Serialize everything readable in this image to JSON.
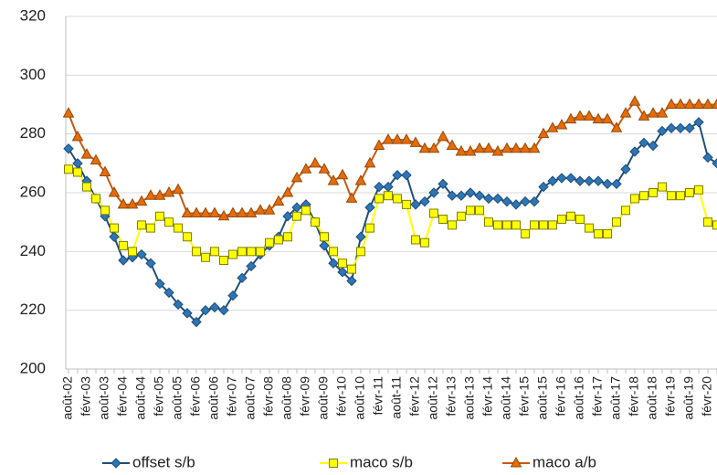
{
  "chart_data": {
    "type": "line",
    "categories": [
      "août-02",
      null,
      "févr-03",
      null,
      "août-03",
      null,
      "févr-04",
      null,
      "août-04",
      null,
      "févr-05",
      null,
      "août-05",
      null,
      "févr-06",
      null,
      "août-06",
      null,
      "févr-07",
      null,
      "août-07",
      null,
      "févr-08",
      null,
      "août-08",
      null,
      "févr-09",
      null,
      "août-09",
      null,
      "févr-10",
      null,
      "août-10",
      null,
      "févr-11",
      null,
      "août-11",
      null,
      "févr-12",
      null,
      "août-12",
      null,
      "févr-13",
      null,
      "août-13",
      null,
      "févr-14",
      null,
      "août-14",
      null,
      "févr-15",
      null,
      "août-15",
      null,
      "févr-16",
      null,
      "août-16",
      null,
      "févr-17",
      null,
      "août-17",
      null,
      "févr-18",
      null,
      "août-18",
      null,
      "févr-19",
      null,
      "août-19",
      null,
      "févr-20",
      null
    ],
    "series": [
      {
        "name": "offset s/b",
        "color": "#2e75b6",
        "marker": "diamond",
        "values": [
          275,
          270,
          264,
          258,
          252,
          245,
          237,
          238,
          239,
          236,
          229,
          226,
          222,
          219,
          216,
          220,
          221,
          220,
          225,
          231,
          235,
          239,
          242,
          245,
          252,
          255,
          256,
          250,
          242,
          236,
          233,
          230,
          245,
          255,
          262,
          262,
          266,
          266,
          256,
          257,
          260,
          263,
          259,
          259,
          260,
          259,
          258,
          258,
          257,
          256,
          257,
          257,
          262,
          264,
          265,
          265,
          264,
          264,
          264,
          263,
          263,
          268,
          274,
          277,
          276,
          281,
          282,
          282,
          282,
          284,
          272,
          270
        ]
      },
      {
        "name": "maco s/b",
        "color": "#ffff00",
        "marker": "square",
        "values": [
          268,
          267,
          262,
          258,
          254,
          248,
          242,
          240,
          249,
          248,
          252,
          250,
          248,
          245,
          240,
          238,
          240,
          237,
          239,
          240,
          240,
          240,
          243,
          244,
          245,
          252,
          254,
          250,
          245,
          240,
          236,
          234,
          240,
          248,
          258,
          259,
          258,
          256,
          244,
          243,
          253,
          251,
          249,
          252,
          254,
          254,
          250,
          249,
          249,
          249,
          246,
          249,
          249,
          249,
          251,
          252,
          251,
          248,
          246,
          246,
          250,
          254,
          258,
          259,
          260,
          262,
          259,
          259,
          260,
          261,
          250,
          249
        ]
      },
      {
        "name": "maco a/b",
        "color": "#c55a11",
        "marker": "triangle",
        "values": [
          287,
          279,
          273,
          271,
          267,
          260,
          256,
          256,
          257,
          259,
          259,
          260,
          261,
          253,
          253,
          253,
          253,
          252,
          253,
          253,
          253,
          254,
          254,
          257,
          260,
          265,
          268,
          270,
          268,
          264,
          266,
          258,
          264,
          270,
          276,
          278,
          278,
          278,
          277,
          275,
          275,
          279,
          276,
          274,
          274,
          275,
          275,
          274,
          275,
          275,
          275,
          275,
          280,
          282,
          283,
          285,
          286,
          286,
          285,
          285,
          282,
          287,
          291,
          286,
          287,
          287,
          290,
          290,
          290,
          290,
          290,
          290
        ]
      }
    ],
    "ylim": [
      200,
      320
    ],
    "yticks": [
      200,
      220,
      240,
      260,
      280,
      300,
      320
    ],
    "grid": true
  }
}
